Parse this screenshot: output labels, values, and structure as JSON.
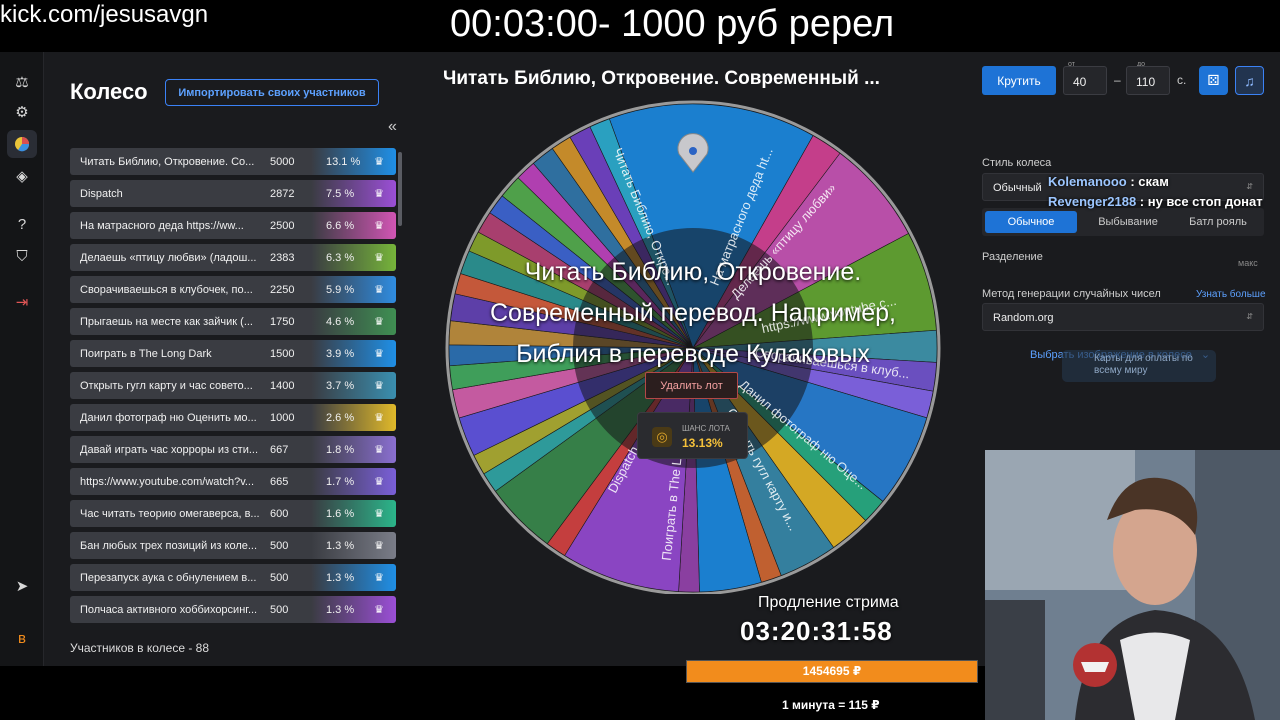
{
  "overlay": {
    "site_url": "kick.com/jesusavgn",
    "top_timer": "00:03:00- 1000 руб ререл",
    "extension_label": "Продление стрима",
    "extension_timer": "03:20:31:58",
    "progress_value": "1454695 ₽",
    "progress_fraction": 1.0,
    "rate": "1 минута = 115 ₽"
  },
  "app": {
    "title": "Колесо",
    "import_button": "Импортировать своих участников",
    "collapse_icon": "«",
    "participants_total": "Участников в колесе - 88",
    "lots": [
      {
        "name": "Читать Библию, Откровение. Со...",
        "amount": "5000",
        "pct": "13.1 %",
        "color": "#1f8fe6"
      },
      {
        "name": "Dispatch",
        "amount": "2872",
        "pct": "7.5 %",
        "color": "#9b4fd6"
      },
      {
        "name": "На матрасного деда https://ww...",
        "amount": "2500",
        "pct": "6.6 %",
        "color": "#d155b4"
      },
      {
        "name": "Делаешь «птицу любви» (ладош...",
        "amount": "2383",
        "pct": "6.3 %",
        "color": "#76b43a"
      },
      {
        "name": "Сворачиваешься в клубочек, по...",
        "amount": "2250",
        "pct": "5.9 %",
        "color": "#2f8ce0"
      },
      {
        "name": "Прыгаешь на месте как зайчик (...",
        "amount": "1750",
        "pct": "4.6 %",
        "color": "#3f8f52"
      },
      {
        "name": "Поиграть в The Long Dark",
        "amount": "1500",
        "pct": "3.9 %",
        "color": "#1f8fe6"
      },
      {
        "name": "Открыть гугл карту и час совето...",
        "amount": "1400",
        "pct": "3.7 %",
        "color": "#3a8fb0"
      },
      {
        "name": "Данил фотограф ню Оценить мо...",
        "amount": "1000",
        "pct": "2.6 %",
        "color": "#e0b92a"
      },
      {
        "name": "Давай играть час хорроры из сти...",
        "amount": "667",
        "pct": "1.8 %",
        "color": "#8a6fd0"
      },
      {
        "name": "https://www.youtube.com/watch?v...",
        "amount": "665",
        "pct": "1.7 %",
        "color": "#7a5fd8"
      },
      {
        "name": "Час читать теорию омегаверса, в...",
        "amount": "600",
        "pct": "1.6 %",
        "color": "#2bb58a"
      },
      {
        "name": "Бан любых трех позиций из коле...",
        "amount": "500",
        "pct": "1.3 %",
        "color": "#7a7d88"
      },
      {
        "name": "Перезапуск аука с обнулением в...",
        "amount": "500",
        "pct": "1.3 %",
        "color": "#1f8fe6"
      },
      {
        "name": "Полчаса активного хоббихорсинг...",
        "amount": "500",
        "pct": "1.3 %",
        "color": "#9b4fd6"
      }
    ],
    "wheel_title": "Читать Библию, Откровение. Современный ...",
    "center_caption_lines": [
      "Читать Библию, Откровение.",
      "Современный перевод. Например,",
      "Библия в переводе Кулаковых"
    ],
    "delete_lot": "Удалить лот",
    "chance_label": "ШАНС ЛОТА",
    "chance_value": "13.13%",
    "wheel_labels": [
      "Читать Библию, Откро...",
      "На матрасного деда ht...",
      "Делаешь «птицу любви»",
      "https://www.youtube.c...",
      "Сворачиваешься в клуб...",
      "Данил фотограф ню Оце...",
      "Открыть гугл карту и...",
      "Поиграть в The Long D...",
      "Dispatch"
    ],
    "controls": {
      "spin": "Крутить",
      "from_caption": "от",
      "from_value": "40",
      "to_caption": "до",
      "to_value": "110",
      "seconds": "с.",
      "dash": "–",
      "wheel_style_label": "Стиль колеса",
      "wheel_style_value": "Обычный",
      "modes": [
        "Обычное",
        "Выбывание",
        "Батл рояль"
      ],
      "split_label": "Разделение",
      "max_caption": "макс",
      "rng_label": "Метод генерации случайных чисел",
      "learn_more": "Узнать больше",
      "rng_value": "Random.org",
      "pick_image": "Выбрать изображение в колесе"
    },
    "pay_badge": "Карты для оплаты по всему миру"
  },
  "chat": [
    {
      "user": "Kolemanooo",
      "text": " : скам"
    },
    {
      "user": "Revenger2188",
      "text": " : ну все стоп донат"
    }
  ],
  "wheel_segments": [
    {
      "share": 13.1,
      "color": "#1b7fcf"
    },
    {
      "share": 2.0,
      "color": "#c43e8a"
    },
    {
      "share": 6.6,
      "color": "#b84fa8"
    },
    {
      "share": 6.3,
      "color": "#5d9a30"
    },
    {
      "share": 2.0,
      "color": "#3b8aa0"
    },
    {
      "share": 1.8,
      "color": "#6a4fbf"
    },
    {
      "share": 1.7,
      "color": "#7a5fd8"
    },
    {
      "share": 5.9,
      "color": "#2676c4"
    },
    {
      "share": 1.6,
      "color": "#26a07a"
    },
    {
      "share": 2.6,
      "color": "#d4a824"
    },
    {
      "share": 3.7,
      "color": "#347f9e"
    },
    {
      "share": 1.3,
      "color": "#c06030"
    },
    {
      "share": 3.9,
      "color": "#1b7fcf"
    },
    {
      "share": 1.3,
      "color": "#8a3fa0"
    },
    {
      "share": 7.5,
      "color": "#8a45c2"
    },
    {
      "share": 1.3,
      "color": "#c43e3e"
    },
    {
      "share": 4.6,
      "color": "#367f48"
    },
    {
      "share": 1.3,
      "color": "#2e9a9a"
    },
    {
      "share": 1.3,
      "color": "#a0a030"
    },
    {
      "share": 2.5,
      "color": "#5a4fd0"
    },
    {
      "share": 1.8,
      "color": "#c45aa0"
    },
    {
      "share": 1.5,
      "color": "#3f9e5a"
    },
    {
      "share": 1.3,
      "color": "#2a6aa8"
    },
    {
      "share": 1.5,
      "color": "#b0843a"
    },
    {
      "share": 1.7,
      "color": "#5d3fa8"
    },
    {
      "share": 1.3,
      "color": "#c4583a"
    },
    {
      "share": 1.5,
      "color": "#2a8a8a"
    },
    {
      "share": 1.3,
      "color": "#7e9a2a"
    },
    {
      "share": 1.4,
      "color": "#a83f6e"
    },
    {
      "share": 1.3,
      "color": "#3a5fc4"
    },
    {
      "share": 1.5,
      "color": "#4fa04a"
    },
    {
      "share": 1.3,
      "color": "#b03fb0"
    },
    {
      "share": 1.5,
      "color": "#2f6f9f"
    },
    {
      "share": 1.3,
      "color": "#c48a2a"
    },
    {
      "share": 1.4,
      "color": "#6a3fb8"
    },
    {
      "share": 1.3,
      "color": "#2aa0c0"
    }
  ]
}
